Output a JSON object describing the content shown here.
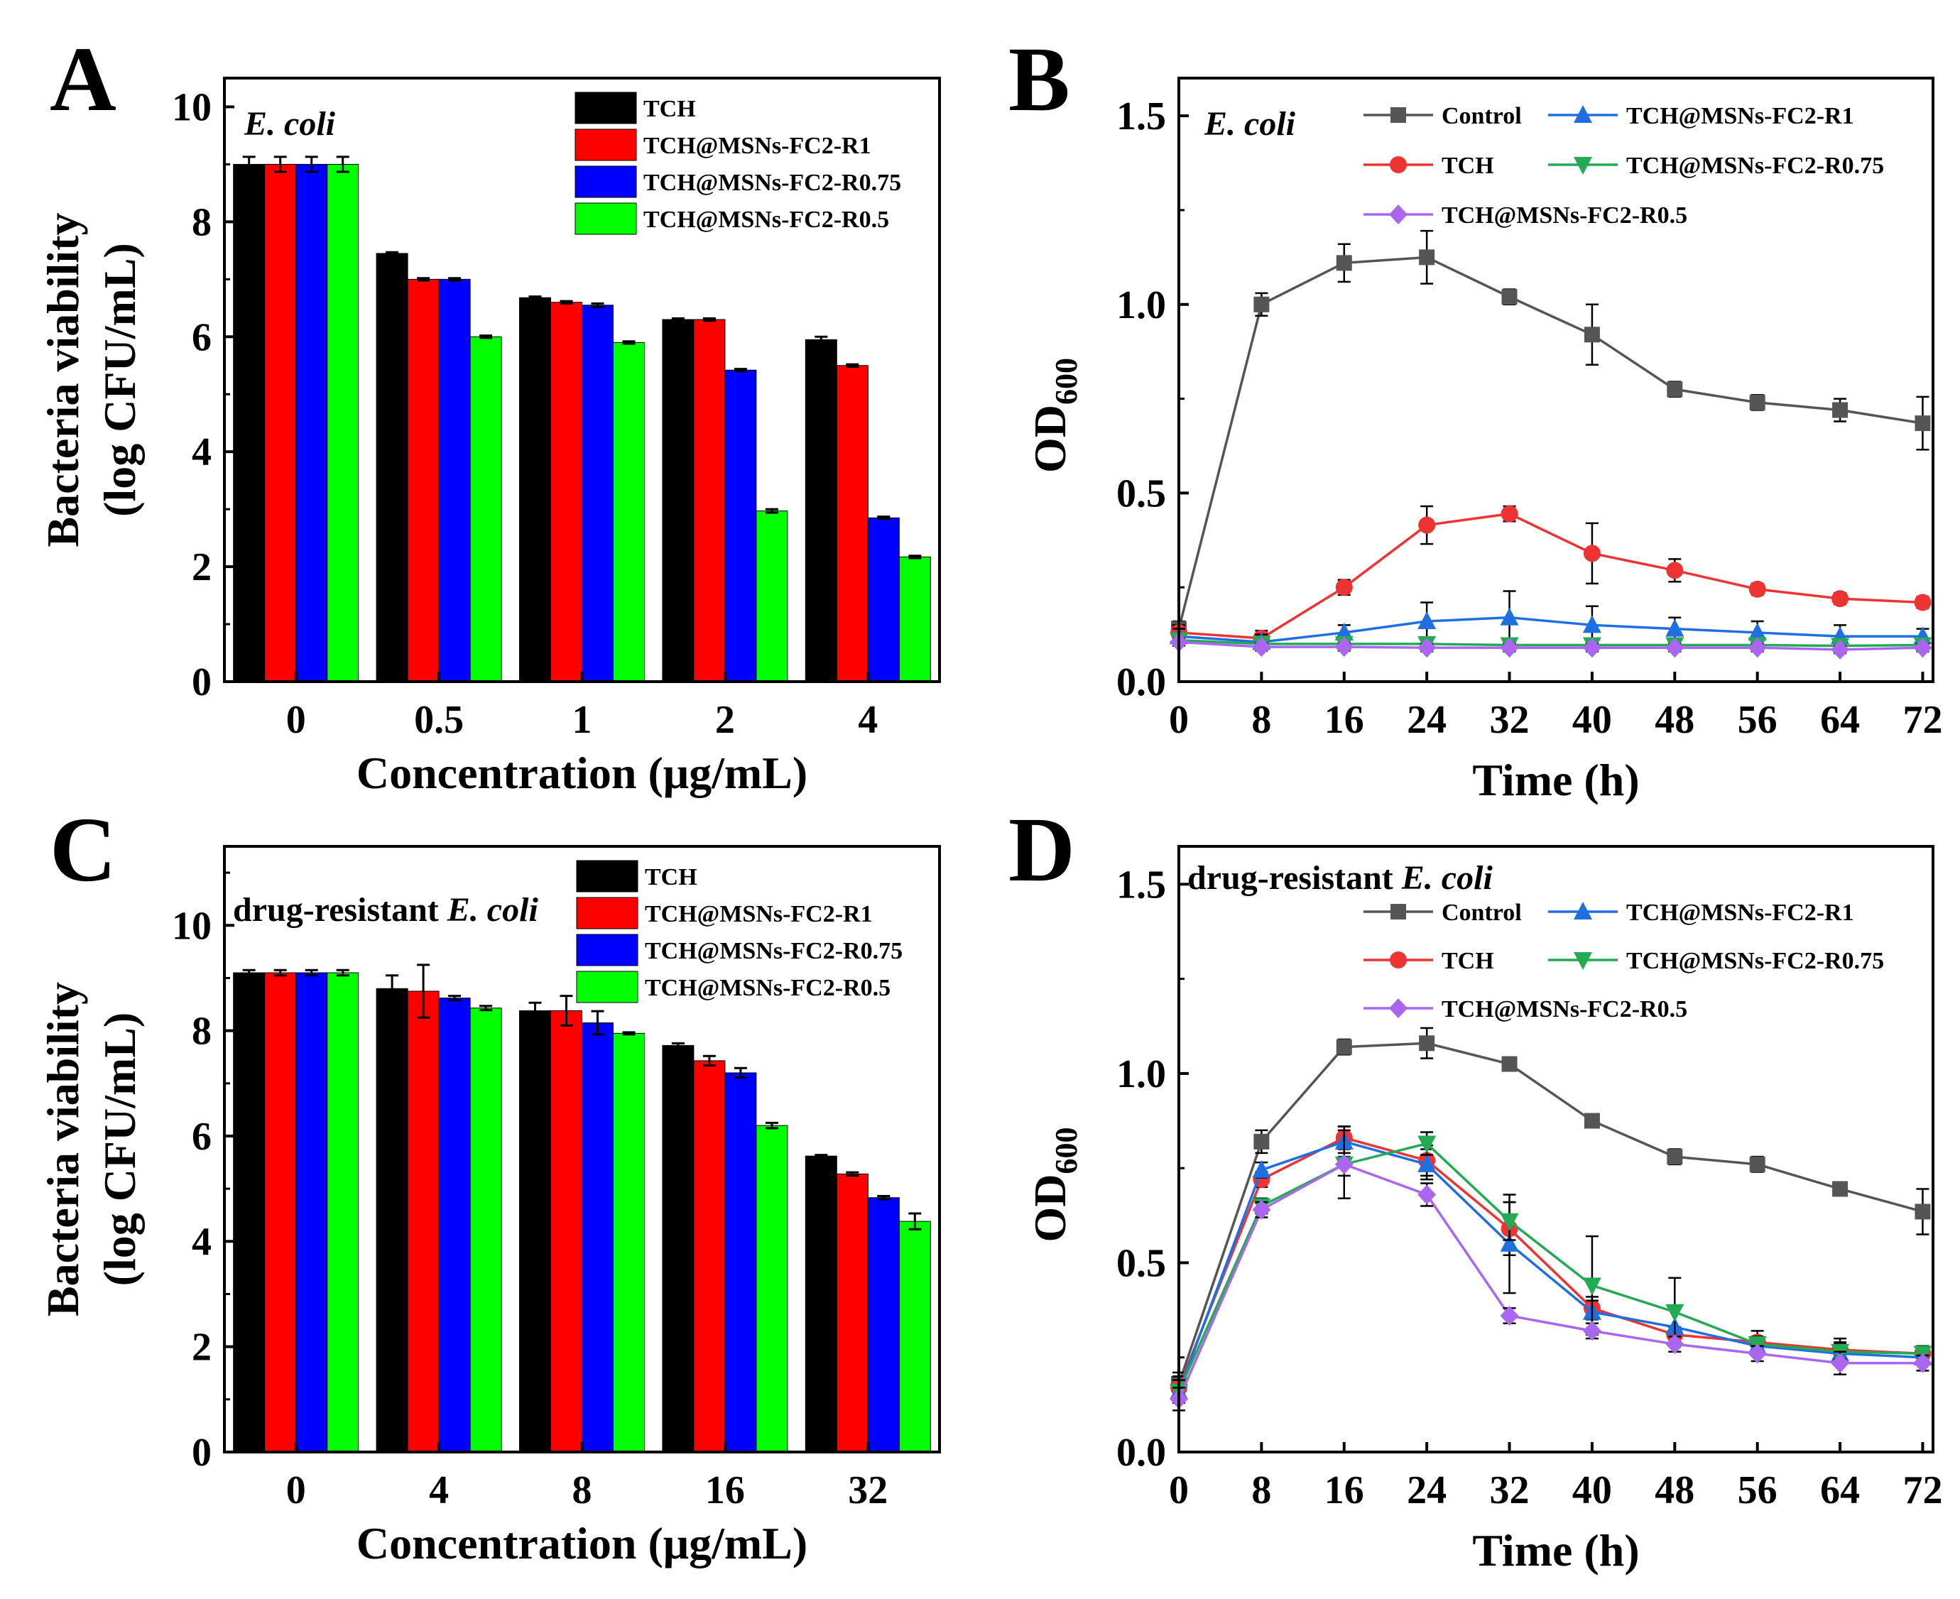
{
  "chart_data": [
    {
      "id": "A",
      "panel_label": "A",
      "type": "bar",
      "annotation": "E. coli",
      "annotation_prefix": "",
      "annotation_italic": "E. coli",
      "xlabel": "Concentration (μg/mL)",
      "ylabel_line1": "Bacteria viability",
      "ylabel_line2": "(log CFU/mL)",
      "ylim": [
        0,
        10.5
      ],
      "yticks": [
        0,
        2,
        4,
        6,
        8,
        10
      ],
      "categories": [
        "0",
        "0.5",
        "1",
        "2",
        "4"
      ],
      "series": [
        {
          "name": "TCH",
          "color": "#000000",
          "values": [
            9.0,
            7.45,
            6.68,
            6.3,
            5.95
          ],
          "errors": [
            0.13,
            0.02,
            0.02,
            0.02,
            0.05
          ]
        },
        {
          "name": "TCH@MSNs-FC2-R1",
          "color": "#ff0000",
          "values": [
            9.0,
            7.0,
            6.6,
            6.3,
            5.5
          ],
          "errors": [
            0.13,
            0.02,
            0.02,
            0.02,
            0.02
          ]
        },
        {
          "name": "TCH@MSNs-FC2-R0.75",
          "color": "#0000ff",
          "values": [
            9.0,
            7.0,
            6.55,
            5.42,
            2.85
          ],
          "errors": [
            0.13,
            0.02,
            0.03,
            0.02,
            0.02
          ]
        },
        {
          "name": "TCH@MSNs-FC2-R0.5",
          "color": "#00ff00",
          "values": [
            9.0,
            6.0,
            5.9,
            2.97,
            2.17
          ],
          "errors": [
            0.13,
            0.02,
            0.02,
            0.03,
            0.02
          ]
        }
      ]
    },
    {
      "id": "B",
      "panel_label": "B",
      "type": "line",
      "annotation": "E. coli",
      "annotation_prefix": "",
      "annotation_italic": "E. coli",
      "xlabel": "Time (h)",
      "ylabel": "OD",
      "ylabel_sub": "600",
      "xlim": [
        0,
        73
      ],
      "ylim": [
        0,
        1.6
      ],
      "xticks": [
        0,
        8,
        16,
        24,
        32,
        40,
        48,
        56,
        64,
        72
      ],
      "yticks": [
        0.0,
        0.5,
        1.0,
        1.5
      ],
      "ytick_labels": [
        "0.0",
        "0.5",
        "1.0",
        "1.5"
      ],
      "x": [
        0,
        8,
        16,
        24,
        32,
        40,
        48,
        56,
        64,
        72
      ],
      "series": [
        {
          "name": "Control",
          "color": "#555555",
          "marker": "square",
          "values": [
            0.14,
            1.0,
            1.11,
            1.125,
            1.02,
            0.92,
            0.775,
            0.74,
            0.72,
            0.685
          ],
          "errors": [
            0.02,
            0.03,
            0.05,
            0.07,
            0.02,
            0.08,
            0.02,
            0.02,
            0.03,
            0.07
          ]
        },
        {
          "name": "TCH",
          "color": "#ee3333",
          "marker": "circle",
          "values": [
            0.13,
            0.115,
            0.25,
            0.415,
            0.445,
            0.34,
            0.295,
            0.245,
            0.22,
            0.21
          ],
          "errors": [
            0.02,
            0.02,
            0.02,
            0.05,
            0.02,
            0.08,
            0.03,
            0.015,
            0.015,
            0.015
          ]
        },
        {
          "name": "TCH@MSNs-FC2-R1",
          "color": "#1f6fe0",
          "marker": "triangle-up",
          "values": [
            0.12,
            0.105,
            0.13,
            0.16,
            0.17,
            0.15,
            0.14,
            0.13,
            0.12,
            0.12
          ],
          "errors": [
            0.02,
            0.02,
            0.02,
            0.05,
            0.07,
            0.05,
            0.03,
            0.03,
            0.03,
            0.02
          ]
        },
        {
          "name": "TCH@MSNs-FC2-R0.75",
          "color": "#22aa55",
          "marker": "triangle-down",
          "values": [
            0.11,
            0.1,
            0.1,
            0.1,
            0.097,
            0.097,
            0.097,
            0.097,
            0.095,
            0.097
          ],
          "errors": [
            0.01,
            0.01,
            0.01,
            0.01,
            0.01,
            0.01,
            0.01,
            0.01,
            0.01,
            0.01
          ]
        },
        {
          "name": "TCH@MSNs-FC2-R0.5",
          "color": "#aa66ee",
          "marker": "diamond",
          "values": [
            0.105,
            0.092,
            0.092,
            0.09,
            0.09,
            0.09,
            0.09,
            0.09,
            0.085,
            0.09
          ],
          "errors": [
            0.01,
            0.01,
            0.01,
            0.01,
            0.01,
            0.01,
            0.01,
            0.01,
            0.01,
            0.01
          ]
        }
      ]
    },
    {
      "id": "C",
      "panel_label": "C",
      "type": "bar",
      "annotation": "drug-resistant E. coli",
      "annotation_prefix": "drug-resistant ",
      "annotation_italic": "E. coli",
      "xlabel": "Concentration (μg/mL)",
      "ylabel_line1": "Bacteria viability",
      "ylabel_line2": "(log CFU/mL)",
      "ylim": [
        0,
        11.5
      ],
      "yticks": [
        0,
        2,
        4,
        6,
        8,
        10
      ],
      "categories": [
        "0",
        "4",
        "8",
        "16",
        "32"
      ],
      "series": [
        {
          "name": "TCH",
          "color": "#000000",
          "values": [
            9.1,
            8.8,
            8.38,
            7.72,
            5.62
          ],
          "errors": [
            0.05,
            0.25,
            0.15,
            0.04,
            0.02
          ]
        },
        {
          "name": "TCH@MSNs-FC2-R1",
          "color": "#ff0000",
          "values": [
            9.1,
            8.75,
            8.38,
            7.43,
            5.28
          ],
          "errors": [
            0.05,
            0.5,
            0.28,
            0.09,
            0.03
          ]
        },
        {
          "name": "TCH@MSNs-FC2-R0.75",
          "color": "#0000ff",
          "values": [
            9.1,
            8.62,
            8.15,
            7.2,
            4.83
          ],
          "errors": [
            0.05,
            0.04,
            0.22,
            0.09,
            0.03
          ]
        },
        {
          "name": "TCH@MSNs-FC2-R0.5",
          "color": "#00ff00",
          "values": [
            9.1,
            8.43,
            7.95,
            6.2,
            4.38
          ],
          "errors": [
            0.05,
            0.04,
            0.02,
            0.05,
            0.15
          ]
        }
      ]
    },
    {
      "id": "D",
      "panel_label": "D",
      "type": "line",
      "annotation": "drug-resistant E. coli",
      "annotation_prefix": "drug-resistant ",
      "annotation_italic": "E. coli",
      "xlabel": "Time (h)",
      "ylabel": "OD",
      "ylabel_sub": "600",
      "xlim": [
        0,
        73
      ],
      "ylim": [
        0,
        1.6
      ],
      "xticks": [
        0,
        8,
        16,
        24,
        32,
        40,
        48,
        56,
        64,
        72
      ],
      "yticks": [
        0.0,
        0.5,
        1.0,
        1.5
      ],
      "ytick_labels": [
        "0.0",
        "0.5",
        "1.0",
        "1.5"
      ],
      "x": [
        0,
        8,
        16,
        24,
        32,
        40,
        48,
        56,
        64,
        72
      ],
      "series": [
        {
          "name": "Control",
          "color": "#555555",
          "marker": "square",
          "values": [
            0.18,
            0.82,
            1.07,
            1.08,
            1.025,
            0.875,
            0.78,
            0.76,
            0.695,
            0.635
          ],
          "errors": [
            0.03,
            0.03,
            0.02,
            0.04,
            0.01,
            0.01,
            0.02,
            0.02,
            0.01,
            0.06
          ]
        },
        {
          "name": "TCH",
          "color": "#ee3333",
          "marker": "circle",
          "values": [
            0.17,
            0.72,
            0.83,
            0.77,
            0.59,
            0.38,
            0.31,
            0.29,
            0.27,
            0.26
          ],
          "errors": [
            0.03,
            0.02,
            0.03,
            0.04,
            0.07,
            0.03,
            0.02,
            0.03,
            0.03,
            0.02
          ]
        },
        {
          "name": "TCH@MSNs-FC2-R1",
          "color": "#1f6fe0",
          "marker": "triangle-up",
          "values": [
            0.16,
            0.745,
            0.82,
            0.76,
            0.55,
            0.37,
            0.33,
            0.28,
            0.26,
            0.25
          ],
          "errors": [
            0.03,
            0.02,
            0.04,
            0.04,
            0.13,
            0.03,
            0.05,
            0.02,
            0.03,
            0.02
          ]
        },
        {
          "name": "TCH@MSNs-FC2-R0.75",
          "color": "#22aa55",
          "marker": "triangle-down",
          "values": [
            0.16,
            0.65,
            0.76,
            0.815,
            0.61,
            0.44,
            0.37,
            0.285,
            0.265,
            0.26
          ],
          "errors": [
            0.03,
            0.02,
            0.03,
            0.03,
            0.05,
            0.13,
            0.09,
            0.02,
            0.02,
            0.02
          ]
        },
        {
          "name": "TCH@MSNs-FC2-R0.5",
          "color": "#aa66ee",
          "marker": "diamond",
          "values": [
            0.14,
            0.64,
            0.76,
            0.68,
            0.36,
            0.32,
            0.285,
            0.26,
            0.235,
            0.235
          ],
          "errors": [
            0.03,
            0.02,
            0.09,
            0.03,
            0.02,
            0.02,
            0.02,
            0.02,
            0.03,
            0.02
          ]
        }
      ]
    }
  ]
}
